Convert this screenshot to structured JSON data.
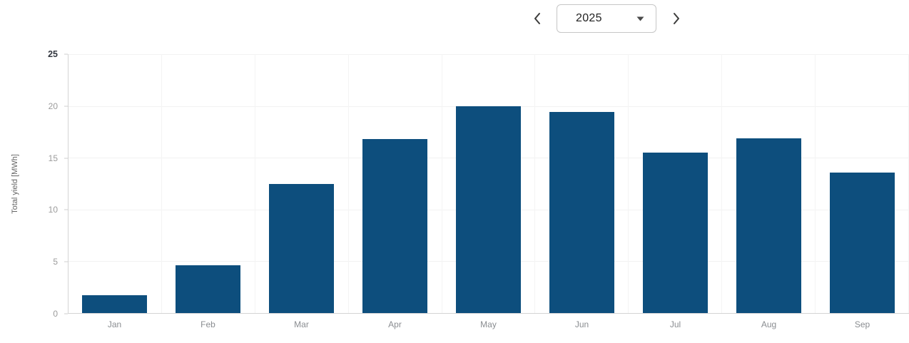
{
  "year_nav": {
    "year": "2025",
    "icons": {
      "prev": "chevron-left",
      "next": "chevron-right",
      "open": "caret-down"
    }
  },
  "chart_data": {
    "type": "bar",
    "title": "",
    "categories": [
      "Jan",
      "Feb",
      "Mar",
      "Apr",
      "May",
      "Jun",
      "Jul",
      "Aug",
      "Sep"
    ],
    "values": [
      1.7,
      4.6,
      12.5,
      16.8,
      20,
      19.4,
      15.5,
      16.9,
      13.6
    ],
    "xlabel": "",
    "ylabel": "Total yield [MWh]",
    "ylim": [
      0,
      25
    ],
    "yticks": [
      0,
      5,
      10,
      15,
      20,
      25
    ],
    "bar_color": "#0d4e7d",
    "grid": true,
    "legend": false
  }
}
